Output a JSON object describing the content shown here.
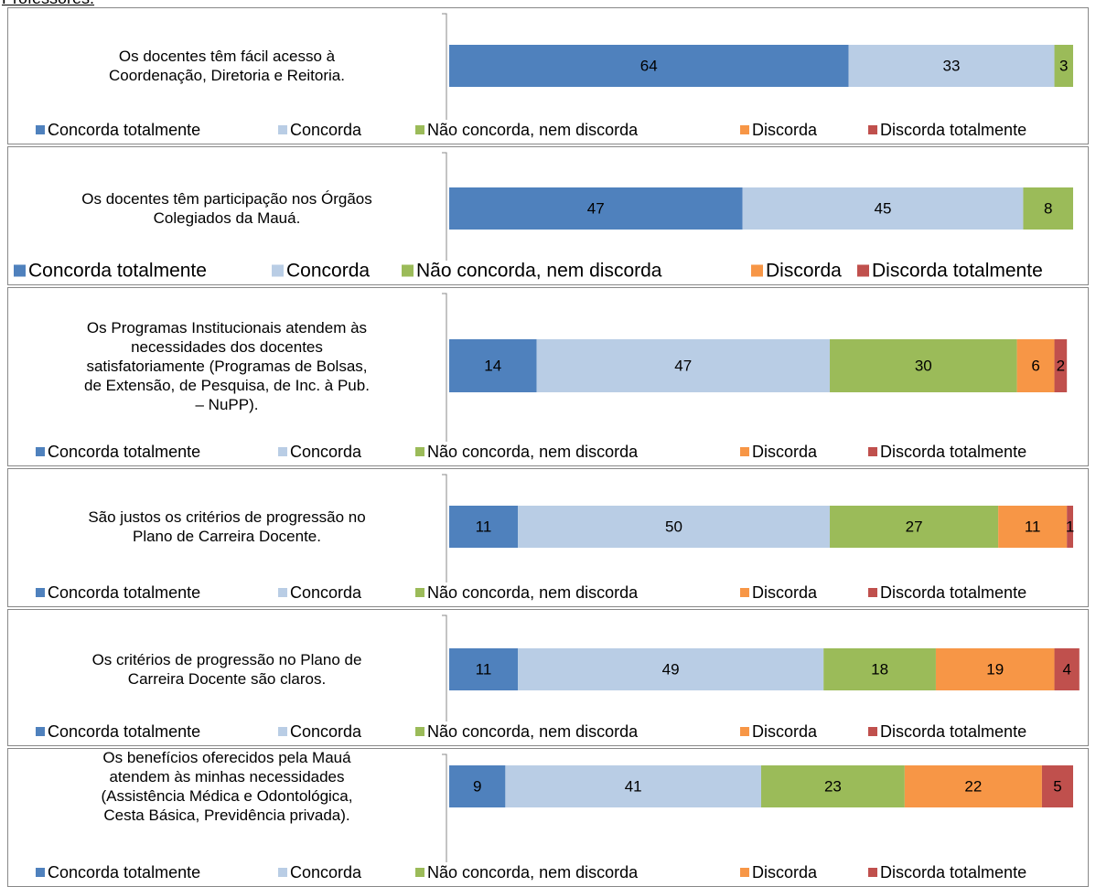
{
  "header": "Professores:",
  "chart_data": [
    {
      "type": "bar",
      "categories": [
        "Os docentes têm fácil acesso à\nCoordenação, Diretoria e Reitoria."
      ],
      "xlim": [
        0,
        100
      ],
      "series": [
        {
          "name": "Concorda totalmente",
          "color": "#4f81bd",
          "values": [
            64
          ]
        },
        {
          "name": "Concorda",
          "color": "#b9cde5",
          "values": [
            33
          ]
        },
        {
          "name": "Não concorda, nem discorda",
          "color": "#9bbb59",
          "values": [
            3
          ]
        },
        {
          "name": "Discorda",
          "color": "#f79646",
          "values": [
            null
          ]
        },
        {
          "name": "Discorda totalmente",
          "color": "#c0504d",
          "values": [
            null
          ]
        }
      ]
    },
    {
      "type": "bar",
      "categories": [
        "Os docentes têm participação nos Órgãos\nColegiados da Mauá."
      ],
      "xlim": [
        0,
        100
      ],
      "series": [
        {
          "name": "Concorda totalmente",
          "color": "#4f81bd",
          "values": [
            47
          ]
        },
        {
          "name": "Concorda",
          "color": "#b9cde5",
          "values": [
            45
          ]
        },
        {
          "name": "Não concorda, nem discorda",
          "color": "#9bbb59",
          "values": [
            8
          ]
        },
        {
          "name": "Discorda",
          "color": "#f79646",
          "values": [
            null
          ]
        },
        {
          "name": "Discorda totalmente",
          "color": "#c0504d",
          "values": [
            null
          ]
        }
      ]
    },
    {
      "type": "bar",
      "categories": [
        "Os Programas Institucionais atendem às\nnecessidades dos docentes\nsatisfatoriamente (Programas de Bolsas,\nde Extensão, de Pesquisa, de Inc. à Pub.\n– NuPP)."
      ],
      "xlim": [
        0,
        100
      ],
      "series": [
        {
          "name": "Concorda totalmente",
          "color": "#4f81bd",
          "values": [
            14
          ]
        },
        {
          "name": "Concorda",
          "color": "#b9cde5",
          "values": [
            47
          ]
        },
        {
          "name": "Não concorda, nem discorda",
          "color": "#9bbb59",
          "values": [
            30
          ]
        },
        {
          "name": "Discorda",
          "color": "#f79646",
          "values": [
            6
          ]
        },
        {
          "name": "Discorda totalmente",
          "color": "#c0504d",
          "values": [
            2
          ]
        }
      ]
    },
    {
      "type": "bar",
      "categories": [
        "São justos os critérios de progressão no\nPlano de Carreira Docente."
      ],
      "xlim": [
        0,
        100
      ],
      "series": [
        {
          "name": "Concorda totalmente",
          "color": "#4f81bd",
          "values": [
            11
          ]
        },
        {
          "name": "Concorda",
          "color": "#b9cde5",
          "values": [
            50
          ]
        },
        {
          "name": "Não concorda, nem discorda",
          "color": "#9bbb59",
          "values": [
            27
          ]
        },
        {
          "name": "Discorda",
          "color": "#f79646",
          "values": [
            11
          ]
        },
        {
          "name": "Discorda totalmente",
          "color": "#c0504d",
          "values": [
            1
          ]
        }
      ]
    },
    {
      "type": "bar",
      "categories": [
        "Os critérios de progressão no Plano de\nCarreira Docente são claros."
      ],
      "xlim": [
        0,
        100
      ],
      "series": [
        {
          "name": "Concorda totalmente",
          "color": "#4f81bd",
          "values": [
            11
          ]
        },
        {
          "name": "Concorda",
          "color": "#b9cde5",
          "values": [
            49
          ]
        },
        {
          "name": "Não concorda, nem discorda",
          "color": "#9bbb59",
          "values": [
            18
          ]
        },
        {
          "name": "Discorda",
          "color": "#f79646",
          "values": [
            19
          ]
        },
        {
          "name": "Discorda totalmente",
          "color": "#c0504d",
          "values": [
            4
          ]
        }
      ]
    },
    {
      "type": "bar",
      "categories": [
        "Os benefícios oferecidos pela Mauá\natendem às minhas necessidades\n(Assistência Médica e Odontológica,\nCesta Básica, Previdência privada)."
      ],
      "xlim": [
        0,
        100
      ],
      "series": [
        {
          "name": "Concorda totalmente",
          "color": "#4f81bd",
          "values": [
            9
          ]
        },
        {
          "name": "Concorda",
          "color": "#b9cde5",
          "values": [
            41
          ]
        },
        {
          "name": "Não concorda, nem discorda",
          "color": "#9bbb59",
          "values": [
            23
          ]
        },
        {
          "name": "Discorda",
          "color": "#f79646",
          "values": [
            22
          ]
        },
        {
          "name": "Discorda totalmente",
          "color": "#c0504d",
          "values": [
            5
          ]
        }
      ]
    }
  ]
}
